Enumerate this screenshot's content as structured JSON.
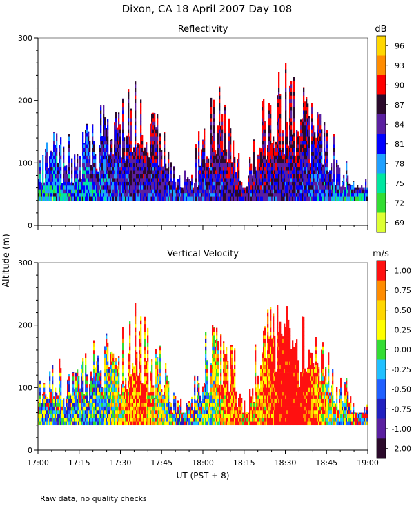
{
  "title": "Dixon, CA 18 April 2007  Day 108",
  "footnote": "Raw data, no quality checks",
  "shared_ylabel": "Altitude (m)",
  "chart_data": [
    {
      "type": "heatmap",
      "title": "Reflectivity",
      "xlabel": "UT  (PST + 8)",
      "ylabel": "Altitude (m)",
      "xlim": [
        "17:00",
        "19:00"
      ],
      "ylim": [
        0,
        300
      ],
      "x_ticks": [
        "17:00",
        "17:15",
        "17:30",
        "17:45",
        "18:00",
        "18:15",
        "18:30",
        "18:45",
        "19:00"
      ],
      "y_ticks": [
        0,
        100,
        200,
        300
      ],
      "colorbar": {
        "unit": "dB",
        "tick_labels": [
          "96",
          "93",
          "90",
          "87",
          "84",
          "81",
          "78",
          "75",
          "72",
          "69"
        ],
        "tick_values": [
          96,
          93,
          90,
          87,
          84,
          81,
          78,
          75,
          72,
          69
        ],
        "colors": [
          "#ffd700",
          "#ff8c00",
          "#ff0000",
          "#2b0a2b",
          "#5a1fa0",
          "#0000ff",
          "#1fa0ff",
          "#00e6a0",
          "#33dd33",
          "#ddff33"
        ]
      },
      "data_floor_m": 40,
      "echo_top_profile": {
        "time_min": [
          0,
          10,
          20,
          25,
          30,
          35,
          40,
          45,
          50,
          55,
          60,
          65,
          70,
          75,
          80,
          85,
          90,
          95,
          100,
          105,
          110,
          115,
          120
        ],
        "top_m": [
          150,
          140,
          170,
          200,
          190,
          230,
          200,
          160,
          90,
          80,
          180,
          220,
          200,
          50,
          200,
          230,
          250,
          220,
          200,
          160,
          130,
          80,
          70
        ]
      }
    },
    {
      "type": "heatmap",
      "title": "Vertical Velocity",
      "xlabel": "UT  (PST + 8)",
      "ylabel": "Altitude (m)",
      "xlim": [
        "17:00",
        "19:00"
      ],
      "ylim": [
        0,
        300
      ],
      "x_ticks": [
        "17:00",
        "17:15",
        "17:30",
        "17:45",
        "18:00",
        "18:15",
        "18:30",
        "18:45",
        "19:00"
      ],
      "y_ticks": [
        0,
        100,
        200,
        300
      ],
      "colorbar": {
        "unit": "m/s",
        "tick_labels": [
          "1.00",
          "0.75",
          "0.50",
          "0.25",
          "0.00",
          "-0.25",
          "-0.50",
          "-0.75",
          "-1.00",
          "-2.00"
        ],
        "tick_values": [
          1.0,
          0.75,
          0.5,
          0.25,
          0.0,
          -0.25,
          -0.5,
          -0.75,
          -1.0,
          -2.0
        ],
        "colors": [
          "#ff1010",
          "#ff8c00",
          "#ffd700",
          "#ffff00",
          "#33dd33",
          "#1fc0ff",
          "#1f5fff",
          "#2020c0",
          "#5a1fa0",
          "#2b0a2b"
        ]
      },
      "data_floor_m": 40,
      "echo_top_profile": {
        "time_min": [
          0,
          10,
          20,
          25,
          30,
          35,
          40,
          45,
          50,
          55,
          60,
          65,
          70,
          75,
          80,
          85,
          90,
          95,
          100,
          105,
          110,
          115,
          120
        ],
        "top_m": [
          150,
          140,
          170,
          200,
          190,
          230,
          200,
          160,
          90,
          80,
          180,
          220,
          200,
          50,
          200,
          230,
          250,
          220,
          200,
          160,
          130,
          80,
          70
        ]
      }
    }
  ]
}
